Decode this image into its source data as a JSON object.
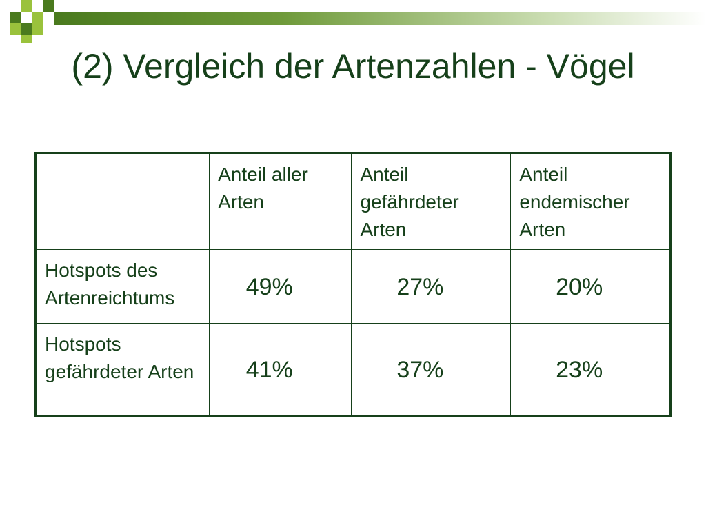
{
  "slide": {
    "title": "(2) Vergleich der Artenzahlen - Vögel"
  },
  "table": {
    "header": [
      "",
      "Anteil aller Arten",
      "Anteil gefährdeter Arten",
      "Anteil endemischer Arten"
    ],
    "rows": [
      {
        "label": "Hotspots des Artenreichtums",
        "values": [
          "49%",
          "27%",
          "20%"
        ]
      },
      {
        "label": "Hotspots gefährdeter Arten",
        "values": [
          "41%",
          "37%",
          "23%"
        ]
      }
    ]
  },
  "colors": {
    "text": "#16401a",
    "accent_dark": "#4a7a1e",
    "accent_light": "#9ac23c"
  }
}
